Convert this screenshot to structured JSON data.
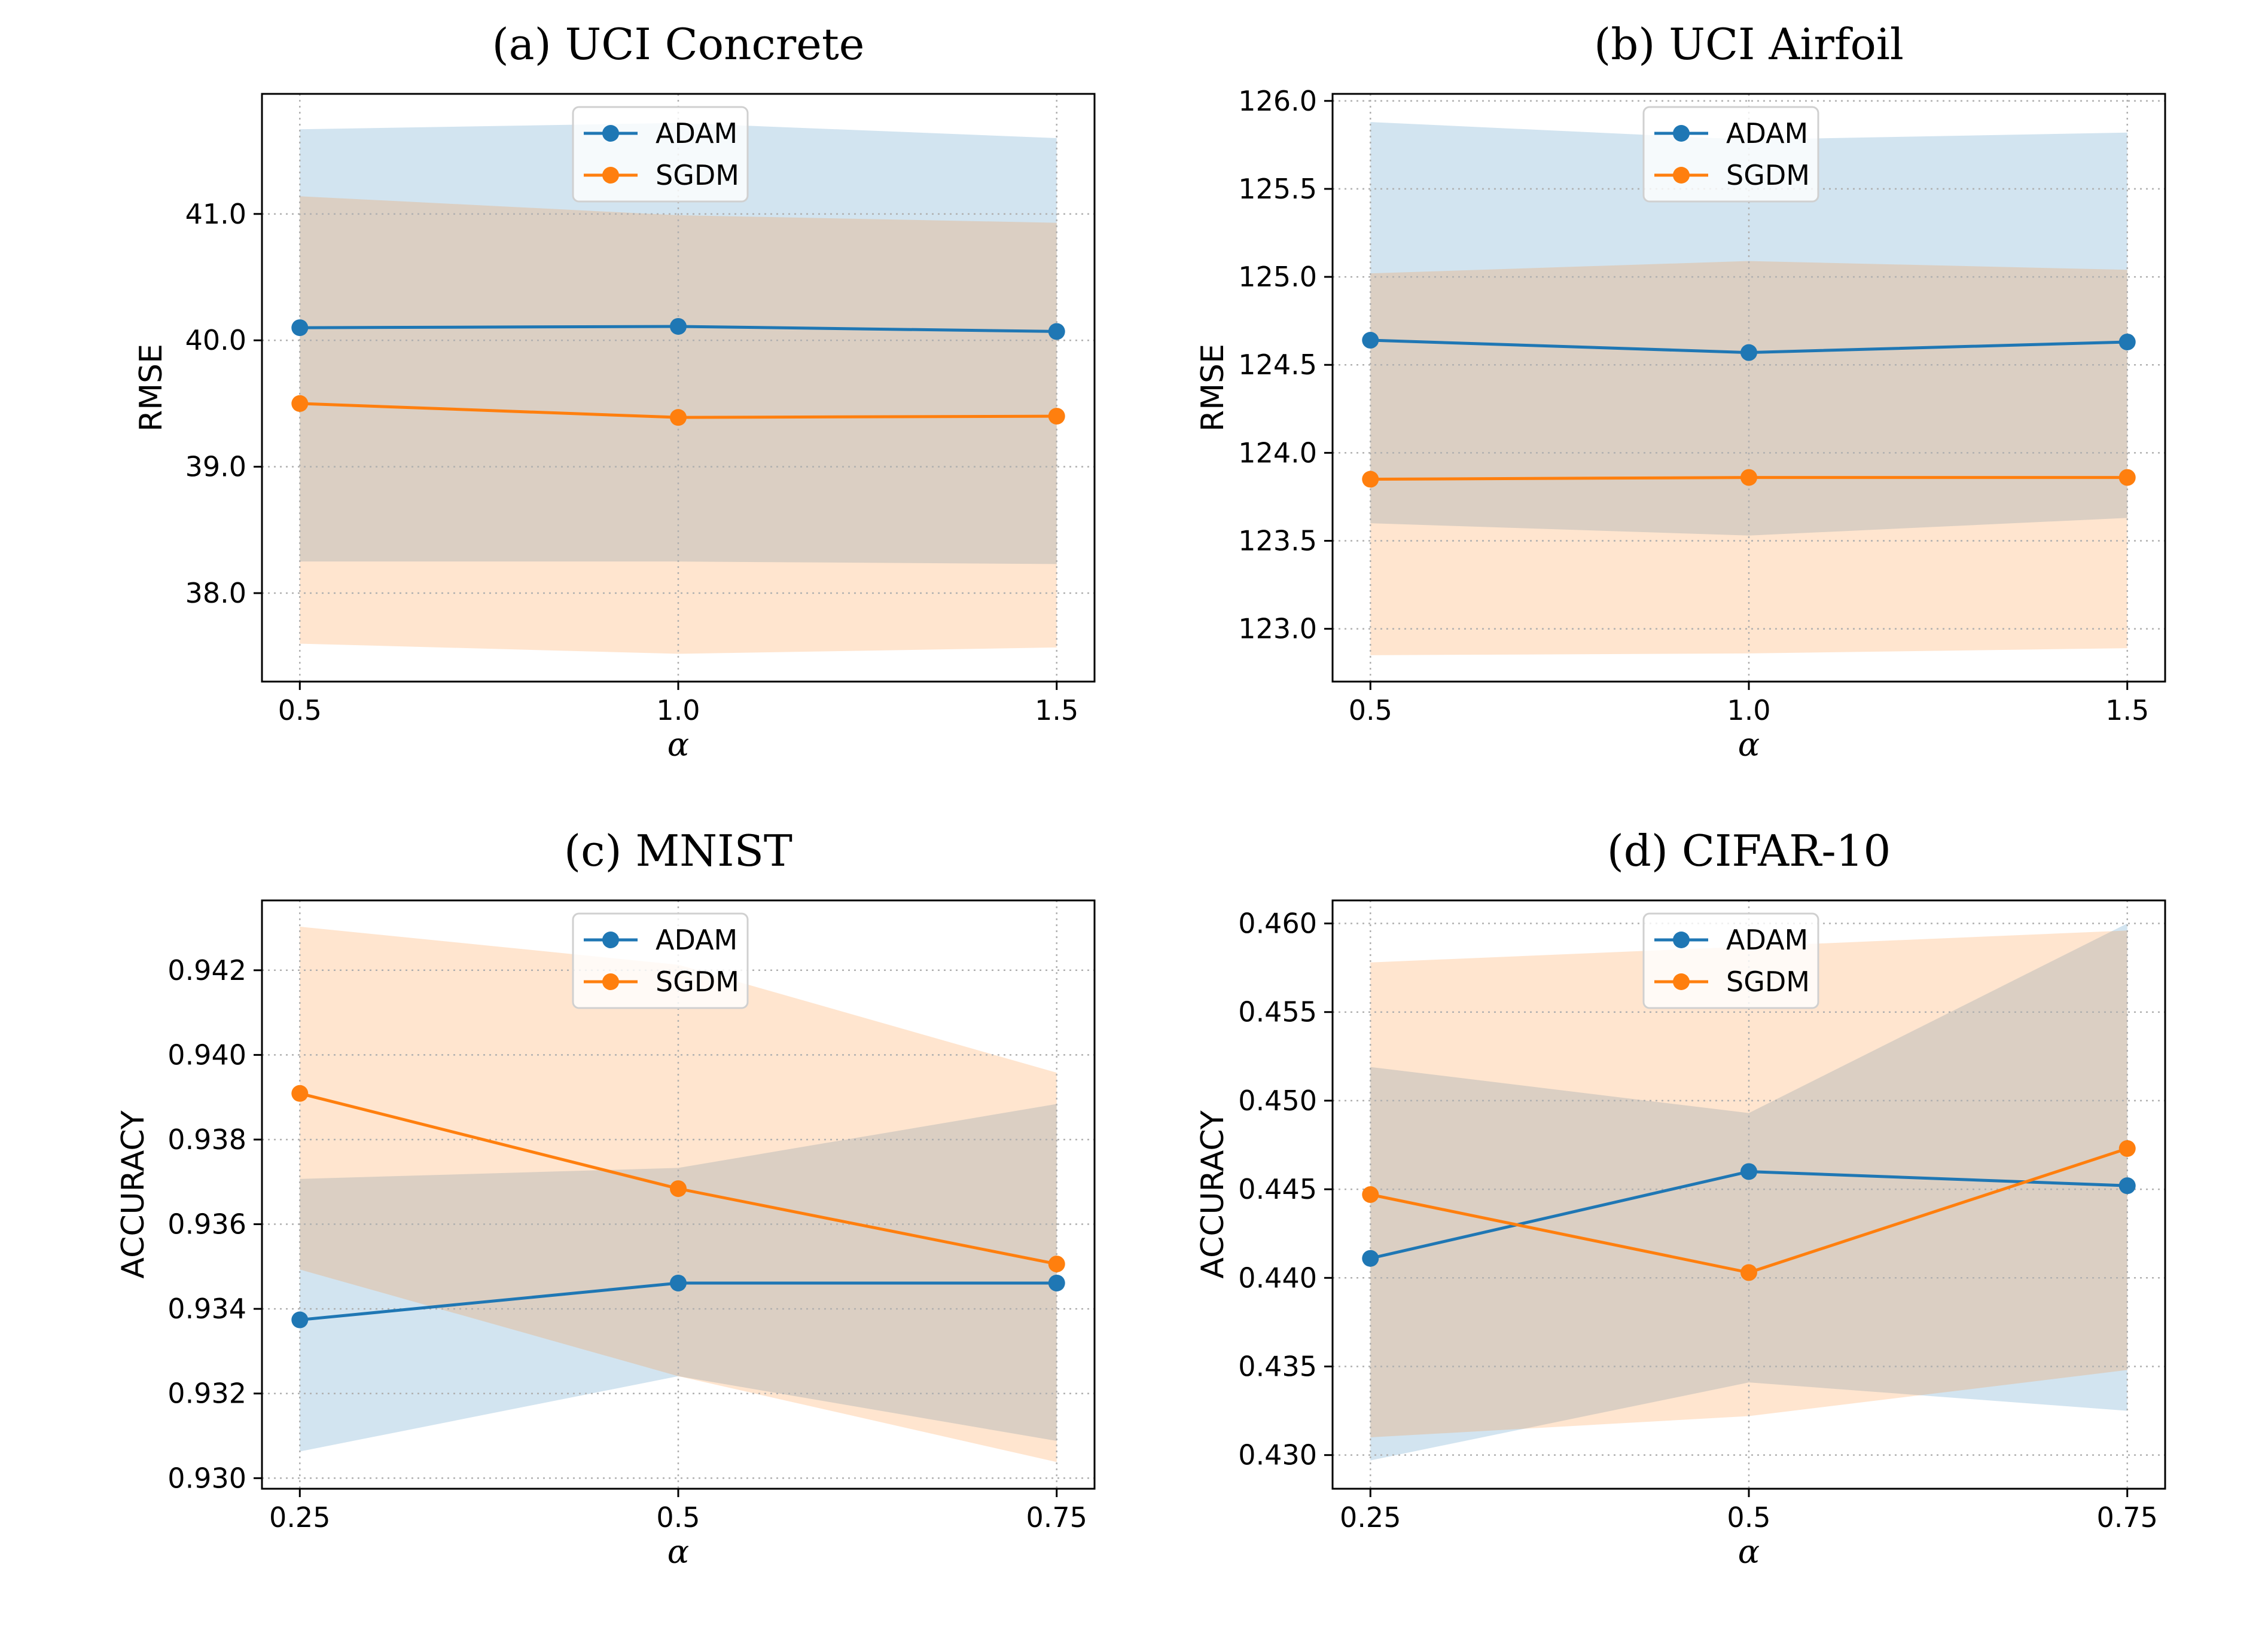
{
  "colors": {
    "adam": "#1f77b4",
    "sgdm": "#ff7f0e",
    "adam_band": "#1f77b4",
    "sgdm_band": "#ff7f0e",
    "grid": "#b0b0b0"
  },
  "chart_data": [
    {
      "type": "line",
      "title": "(a) UCI Concrete",
      "xlabel": "α",
      "ylabel": "RMSE",
      "x": [
        0.5,
        1.0,
        1.5
      ],
      "xticks": [
        0.5,
        1.0,
        1.5
      ],
      "xtick_labels": [
        "0.5",
        "1.0",
        "1.5"
      ],
      "xlim": [
        0.45,
        1.55
      ],
      "ylim": [
        37.3,
        41.95
      ],
      "yticks": [
        38.0,
        39.0,
        40.0,
        41.0
      ],
      "ytick_labels": [
        "38.0",
        "39.0",
        "40.0",
        "41.0"
      ],
      "legend": "upper center",
      "series": [
        {
          "name": "ADAM",
          "values": [
            40.1,
            40.11,
            40.07
          ],
          "lower": [
            38.25,
            38.25,
            38.23
          ],
          "upper": [
            41.67,
            41.72,
            41.6
          ]
        },
        {
          "name": "SGDM",
          "values": [
            39.5,
            39.39,
            39.4
          ],
          "lower": [
            37.6,
            37.52,
            37.57
          ],
          "upper": [
            41.14,
            40.99,
            40.93
          ]
        }
      ]
    },
    {
      "type": "line",
      "title": "(b) UCI Airfoil",
      "xlabel": "α",
      "ylabel": "RMSE",
      "x": [
        0.5,
        1.0,
        1.5
      ],
      "xticks": [
        0.5,
        1.0,
        1.5
      ],
      "xtick_labels": [
        "0.5",
        "1.0",
        "1.5"
      ],
      "xlim": [
        0.45,
        1.55
      ],
      "ylim": [
        122.7,
        126.04
      ],
      "yticks": [
        123.0,
        123.5,
        124.0,
        124.5,
        125.0,
        125.5,
        126.0
      ],
      "ytick_labels": [
        "123.0",
        "123.5",
        "124.0",
        "124.5",
        "125.0",
        "125.5",
        "126.0"
      ],
      "legend": "upper center",
      "series": [
        {
          "name": "ADAM",
          "values": [
            124.64,
            124.57,
            124.63
          ],
          "lower": [
            123.6,
            123.53,
            123.63
          ],
          "upper": [
            125.88,
            125.78,
            125.82
          ]
        },
        {
          "name": "SGDM",
          "values": [
            123.85,
            123.86,
            123.86
          ],
          "lower": [
            122.85,
            122.86,
            122.89
          ],
          "upper": [
            125.02,
            125.09,
            125.04
          ]
        }
      ]
    },
    {
      "type": "line",
      "title": "(c) MNIST",
      "xlabel": "α",
      "ylabel": "ACCURACY",
      "x": [
        0.25,
        0.5,
        0.75
      ],
      "xticks": [
        0.25,
        0.5,
        0.75
      ],
      "xtick_labels": [
        "0.25",
        "0.5",
        "0.75"
      ],
      "xlim": [
        0.225,
        0.775
      ],
      "ylim": [
        0.92975,
        0.94365
      ],
      "yticks": [
        0.93,
        0.932,
        0.934,
        0.936,
        0.938,
        0.94,
        0.942
      ],
      "ytick_labels": [
        "0.930",
        "0.932",
        "0.934",
        "0.936",
        "0.938",
        "0.940",
        "0.942"
      ],
      "legend": "upper center",
      "series": [
        {
          "name": "ADAM",
          "values": [
            0.93374,
            0.93461,
            0.93461
          ],
          "lower": [
            0.93063,
            0.93241,
            0.93088
          ],
          "upper": [
            0.93707,
            0.93733,
            0.93884
          ]
        },
        {
          "name": "SGDM",
          "values": [
            0.93909,
            0.93684,
            0.93506
          ],
          "lower": [
            0.93493,
            0.93241,
            0.93038
          ],
          "upper": [
            0.94303,
            0.94213,
            0.93958
          ]
        }
      ]
    },
    {
      "type": "line",
      "title": "(d) CIFAR-10",
      "xlabel": "α",
      "ylabel": "ACCURACY",
      "x": [
        0.25,
        0.5,
        0.75
      ],
      "xticks": [
        0.25,
        0.5,
        0.75
      ],
      "xtick_labels": [
        "0.25",
        "0.5",
        "0.75"
      ],
      "xlim": [
        0.225,
        0.775
      ],
      "ylim": [
        0.4281,
        0.4613
      ],
      "yticks": [
        0.43,
        0.435,
        0.44,
        0.445,
        0.45,
        0.455,
        0.46
      ],
      "ytick_labels": [
        "0.430",
        "0.435",
        "0.440",
        "0.445",
        "0.450",
        "0.455",
        "0.460"
      ],
      "legend": "upper center",
      "series": [
        {
          "name": "ADAM",
          "values": [
            0.4411,
            0.446,
            0.4452
          ],
          "lower": [
            0.4297,
            0.4341,
            0.4325
          ],
          "upper": [
            0.4519,
            0.4493,
            0.46
          ]
        },
        {
          "name": "SGDM",
          "values": [
            0.4447,
            0.4403,
            0.4473
          ],
          "lower": [
            0.431,
            0.4322,
            0.4348
          ],
          "upper": [
            0.4578,
            0.4587,
            0.4596
          ]
        }
      ]
    }
  ]
}
